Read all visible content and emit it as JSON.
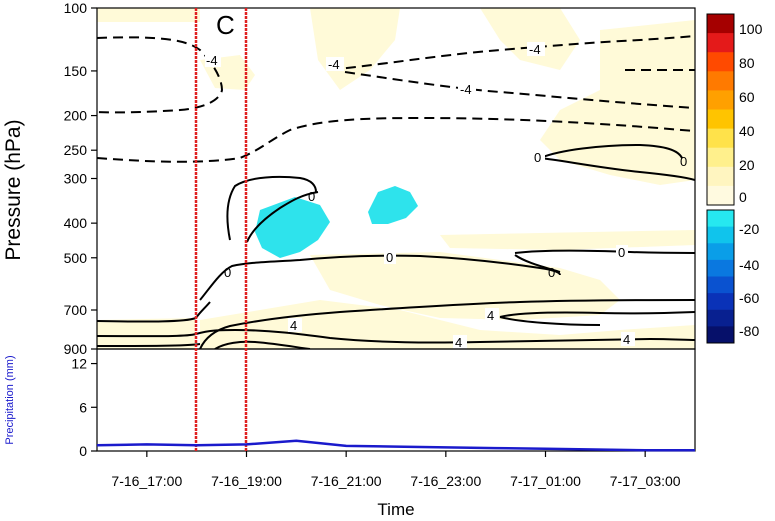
{
  "chart_data": [
    {
      "type": "heatmap",
      "panel_label": "C",
      "ylabel": "Pressure (hPa)",
      "ylim": [
        900,
        100
      ],
      "y_scale": "log",
      "y_ticks": [
        100,
        150,
        200,
        250,
        300,
        400,
        500,
        700,
        900
      ],
      "colorbar": {
        "ticks": [
          100,
          80,
          60,
          40,
          20,
          0,
          -20,
          -40,
          -60,
          -80
        ],
        "colors": [
          "#a50000",
          "#e41a1a",
          "#ff4a00",
          "#ff7a00",
          "#ffa000",
          "#ffc400",
          "#ffe24a",
          "#fff08c",
          "#fff5c0",
          "#fffae0",
          "#26e8f0",
          "#10c4ec",
          "#0a9ee8",
          "#0a78e0",
          "#0a52d0",
          "#0a32b8",
          "#082090",
          "#06106a"
        ]
      },
      "contour_labels": [
        "-4",
        "-4",
        "-4",
        "-4",
        "0",
        "0",
        "0",
        "0",
        "0",
        "0",
        "0",
        "4",
        "4",
        "4",
        "4"
      ],
      "vertical_markers": [
        "7-16_18:00",
        "7-16_19:00"
      ]
    },
    {
      "type": "line",
      "xlabel": "Time",
      "ylabel": "Precipitation (mm)",
      "ylim": [
        0,
        14
      ],
      "y_ticks": [
        0,
        6,
        12
      ],
      "x_ticks": [
        "7-16_17:00",
        "7-16_19:00",
        "7-16_21:00",
        "7-16_23:00",
        "7-17_01:00",
        "7-17_03:00"
      ],
      "series": [
        {
          "color": "#1a1acc",
          "x": [
            0,
            1,
            2,
            3,
            4,
            5,
            6,
            7,
            8,
            9,
            10,
            11,
            12
          ],
          "y": [
            0.8,
            0.9,
            0.8,
            0.9,
            1.4,
            0.7,
            0.6,
            0.5,
            0.4,
            0.3,
            0.2,
            0.1,
            0.1
          ]
        }
      ]
    }
  ]
}
